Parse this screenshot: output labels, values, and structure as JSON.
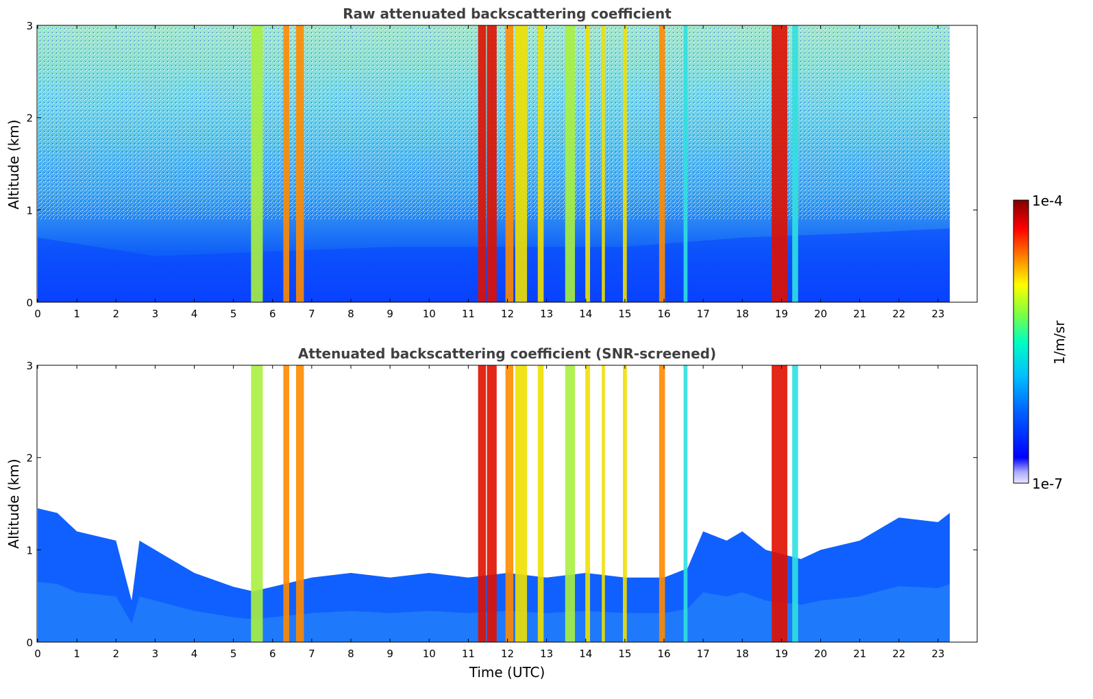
{
  "chart_data": [
    {
      "type": "heatmap",
      "title": "Raw attenuated backscattering coefficient",
      "xlabel": "",
      "ylabel": "Altitude (km)",
      "xlim": [
        0,
        24
      ],
      "ylim": [
        0,
        3
      ],
      "xticks": [
        "0",
        "1",
        "2",
        "3",
        "4",
        "5",
        "6",
        "7",
        "8",
        "9",
        "10",
        "11",
        "12",
        "13",
        "14",
        "15",
        "16",
        "17",
        "18",
        "19",
        "20",
        "21",
        "22",
        "23"
      ],
      "yticks": [
        "0",
        "1",
        "2",
        "3"
      ],
      "data_end_time": 23.3,
      "background_boundary_layer_top_km": [
        {
          "time": 0,
          "km": 0.7
        },
        {
          "time": 3,
          "km": 0.5
        },
        {
          "time": 6,
          "km": 0.55
        },
        {
          "time": 9,
          "km": 0.6
        },
        {
          "time": 12,
          "km": 0.6
        },
        {
          "time": 15,
          "km": 0.6
        },
        {
          "time": 18,
          "km": 0.7
        },
        {
          "time": 21,
          "km": 0.75
        },
        {
          "time": 23.3,
          "km": 0.8
        }
      ],
      "high_signal_columns": [
        {
          "time": 5.6,
          "width_h": 0.3,
          "level": "yellow-green"
        },
        {
          "time": 6.35,
          "width_h": 0.15,
          "level": "orange"
        },
        {
          "time": 6.7,
          "width_h": 0.2,
          "level": "orange"
        },
        {
          "time": 11.35,
          "width_h": 0.2,
          "level": "red"
        },
        {
          "time": 11.6,
          "width_h": 0.25,
          "level": "red"
        },
        {
          "time": 12.05,
          "width_h": 0.2,
          "level": "orange"
        },
        {
          "time": 12.35,
          "width_h": 0.3,
          "level": "yellow"
        },
        {
          "time": 12.85,
          "width_h": 0.15,
          "level": "yellow"
        },
        {
          "time": 13.6,
          "width_h": 0.25,
          "level": "yellow-green"
        },
        {
          "time": 14.05,
          "width_h": 0.12,
          "level": "yellow"
        },
        {
          "time": 14.45,
          "width_h": 0.08,
          "level": "yellow"
        },
        {
          "time": 15.0,
          "width_h": 0.1,
          "level": "yellow"
        },
        {
          "time": 15.95,
          "width_h": 0.15,
          "level": "orange"
        },
        {
          "time": 16.55,
          "width_h": 0.1,
          "level": "cyan"
        },
        {
          "time": 18.95,
          "width_h": 0.4,
          "level": "red"
        },
        {
          "time": 19.35,
          "width_h": 0.15,
          "level": "cyan"
        }
      ]
    },
    {
      "type": "heatmap",
      "title": "Attenuated backscattering coefficient (SNR-screened)",
      "xlabel": "Time (UTC)",
      "ylabel": "Altitude (km)",
      "xlim": [
        0,
        24
      ],
      "ylim": [
        0,
        3
      ],
      "xticks": [
        "0",
        "1",
        "2",
        "3",
        "4",
        "5",
        "6",
        "7",
        "8",
        "9",
        "10",
        "11",
        "12",
        "13",
        "14",
        "15",
        "16",
        "17",
        "18",
        "19",
        "20",
        "21",
        "22",
        "23"
      ],
      "yticks": [
        "0",
        "1",
        "2",
        "3"
      ],
      "data_end_time": 23.3,
      "screened_layer_top_km": [
        {
          "time": 0,
          "km": 1.45
        },
        {
          "time": 0.5,
          "km": 1.4
        },
        {
          "time": 1.0,
          "km": 1.2
        },
        {
          "time": 1.5,
          "km": 1.15
        },
        {
          "time": 2.0,
          "km": 1.1
        },
        {
          "time": 2.4,
          "km": 0.45
        },
        {
          "time": 2.6,
          "km": 1.1
        },
        {
          "time": 3.0,
          "km": 1.0
        },
        {
          "time": 4.0,
          "km": 0.75
        },
        {
          "time": 5.0,
          "km": 0.6
        },
        {
          "time": 5.5,
          "km": 0.55
        },
        {
          "time": 6.0,
          "km": 0.6
        },
        {
          "time": 7.0,
          "km": 0.7
        },
        {
          "time": 8.0,
          "km": 0.75
        },
        {
          "time": 9.0,
          "km": 0.7
        },
        {
          "time": 10.0,
          "km": 0.75
        },
        {
          "time": 11.0,
          "km": 0.7
        },
        {
          "time": 12.0,
          "km": 0.75
        },
        {
          "time": 13.0,
          "km": 0.7
        },
        {
          "time": 14.0,
          "km": 0.75
        },
        {
          "time": 15.0,
          "km": 0.7
        },
        {
          "time": 16.0,
          "km": 0.7
        },
        {
          "time": 16.6,
          "km": 0.8
        },
        {
          "time": 17.0,
          "km": 1.2
        },
        {
          "time": 17.6,
          "km": 1.1
        },
        {
          "time": 18.0,
          "km": 1.2
        },
        {
          "time": 18.6,
          "km": 1.0
        },
        {
          "time": 19.5,
          "km": 0.9
        },
        {
          "time": 20.0,
          "km": 1.0
        },
        {
          "time": 21.0,
          "km": 1.1
        },
        {
          "time": 22.0,
          "km": 1.35
        },
        {
          "time": 23.0,
          "km": 1.3
        },
        {
          "time": 23.3,
          "km": 1.4
        }
      ],
      "high_signal_columns": [
        {
          "time": 5.6,
          "width_h": 0.3,
          "level": "yellow-green"
        },
        {
          "time": 6.35,
          "width_h": 0.15,
          "level": "orange"
        },
        {
          "time": 6.7,
          "width_h": 0.2,
          "level": "orange"
        },
        {
          "time": 11.35,
          "width_h": 0.2,
          "level": "red"
        },
        {
          "time": 11.6,
          "width_h": 0.25,
          "level": "red"
        },
        {
          "time": 12.05,
          "width_h": 0.2,
          "level": "orange"
        },
        {
          "time": 12.35,
          "width_h": 0.3,
          "level": "yellow"
        },
        {
          "time": 12.85,
          "width_h": 0.15,
          "level": "yellow"
        },
        {
          "time": 13.6,
          "width_h": 0.25,
          "level": "yellow-green"
        },
        {
          "time": 14.05,
          "width_h": 0.12,
          "level": "yellow"
        },
        {
          "time": 14.45,
          "width_h": 0.08,
          "level": "yellow"
        },
        {
          "time": 15.0,
          "width_h": 0.1,
          "level": "yellow"
        },
        {
          "time": 15.95,
          "width_h": 0.15,
          "level": "orange"
        },
        {
          "time": 16.55,
          "width_h": 0.1,
          "level": "cyan"
        },
        {
          "time": 18.95,
          "width_h": 0.4,
          "level": "red"
        },
        {
          "time": 19.35,
          "width_h": 0.15,
          "level": "cyan"
        }
      ]
    }
  ],
  "colorbar": {
    "label": "1/m/sr",
    "min_label": "1e-7",
    "max_label": "1e-4",
    "colormap": [
      "#e8e8ff",
      "#a8a8ff",
      "#0000ff",
      "#0060ff",
      "#00c0ff",
      "#00ffc0",
      "#80ff40",
      "#ffff00",
      "#ff8000",
      "#ff0000",
      "#800000"
    ]
  }
}
